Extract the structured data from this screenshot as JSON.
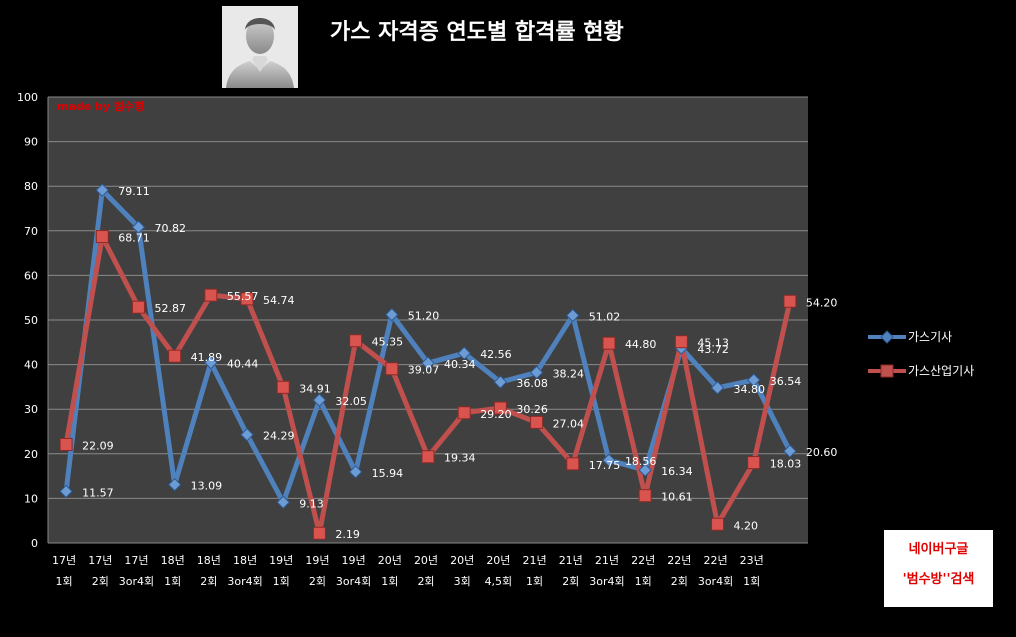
{
  "chart_data": {
    "type": "line",
    "title": "가스 자격증 연도별 합격률 현황",
    "watermark": "made by  범수형",
    "ylim": [
      0,
      100
    ],
    "yticks": [
      0,
      10,
      20,
      30,
      40,
      50,
      60,
      70,
      80,
      90,
      100
    ],
    "grid": true,
    "legend_position": "right",
    "categories": [
      [
        "17년",
        "1회"
      ],
      [
        "17년",
        "2회"
      ],
      [
        "17년",
        "3or4회"
      ],
      [
        "18년",
        "1회"
      ],
      [
        "18년",
        "2회"
      ],
      [
        "18년",
        "3or4회"
      ],
      [
        "19년",
        "1회"
      ],
      [
        "19년",
        "2회"
      ],
      [
        "19년",
        "3or4회"
      ],
      [
        "20년",
        "1회"
      ],
      [
        "20년",
        "2회"
      ],
      [
        "20년",
        "3회"
      ],
      [
        "20년",
        "4,5회"
      ],
      [
        "21년",
        "1회"
      ],
      [
        "21년",
        "2회"
      ],
      [
        "21년",
        "3or4회"
      ],
      [
        "22년",
        "1회"
      ],
      [
        "22년",
        "2회"
      ],
      [
        "22년",
        "3or4회"
      ],
      [
        "23년",
        "1회"
      ],
      [
        " ",
        " "
      ]
    ],
    "series": [
      {
        "name": "가스기사",
        "color": "#4f81bd",
        "values": [
          11.57,
          79.11,
          70.82,
          13.09,
          40.44,
          24.29,
          9.13,
          32.05,
          15.94,
          51.2,
          40.34,
          42.56,
          36.08,
          38.24,
          51.02,
          18.56,
          16.34,
          43.72,
          34.8,
          36.54,
          20.6
        ],
        "labels": [
          "11.57",
          "79.11",
          "70.82",
          "13.09",
          "40.44",
          "24.29",
          "9.13",
          "32.05",
          "15.94",
          "51.20",
          "40.34",
          "42.56",
          "36.08",
          "38.24",
          "51.02",
          "18.56",
          "16.34",
          "43.72",
          "34.80",
          "36.54",
          "20.60"
        ]
      },
      {
        "name": "가스산업기사",
        "color": "#c0504d",
        "values": [
          22.09,
          68.71,
          52.87,
          41.89,
          55.57,
          54.74,
          34.91,
          2.19,
          45.35,
          39.07,
          19.34,
          29.2,
          30.26,
          27.04,
          17.75,
          44.8,
          10.61,
          45.13,
          4.2,
          18.03,
          54.2
        ],
        "labels": [
          "22.09",
          "68.71",
          "52.87",
          "41.89",
          "55.57",
          "54.74",
          "34.91",
          "2.19",
          "45.35",
          "39.07",
          "19.34",
          "29.20",
          "30.26",
          "27.04",
          "17.75",
          "44.80",
          "10.61",
          "45.13",
          "4.20",
          "18.03",
          "54.20"
        ]
      }
    ]
  },
  "search_box": {
    "line1": "네이버구글",
    "line2": "'범수방''검색"
  },
  "avatar": {
    "icon": "user-avatar-icon"
  }
}
